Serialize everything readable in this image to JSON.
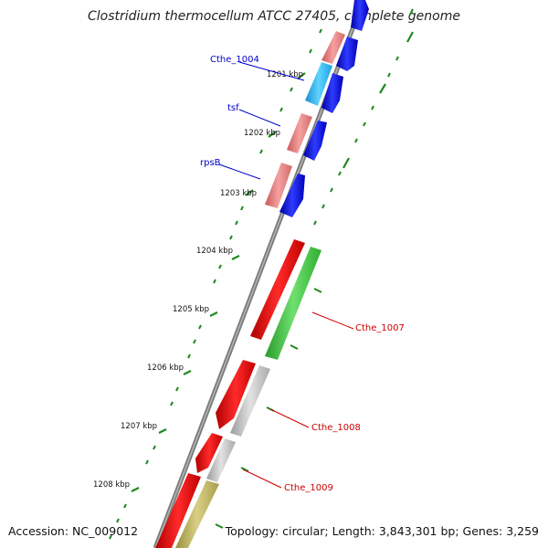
{
  "header": {
    "title": "Clostridium thermocellum ATCC 27405, complete genome"
  },
  "footer": {
    "accession": "Accession: NC_009012",
    "summary": "Topology: circular; Length: 3,843,301 bp; Genes: 3,259"
  },
  "colors": {
    "backbone": "#8a8a8a",
    "tick": "#1e8a1e",
    "forward_label": "#0000cc",
    "reverse_label": "#cc0000"
  },
  "kbp_labels": [
    "1201 kbp",
    "1202 kbp",
    "1203 kbp",
    "1204 kbp",
    "1205 kbp",
    "1206 kbp",
    "1207 kbp",
    "1208 kbp"
  ],
  "genes": [
    {
      "label": "",
      "strand": "forward",
      "color": "pink"
    },
    {
      "label": "",
      "strand": "forward",
      "color": "blue"
    },
    {
      "label": "Cthe_1004",
      "strand": "forward",
      "color": "cyan"
    },
    {
      "label": "",
      "strand": "forward",
      "color": "blue"
    },
    {
      "label": "tsf",
      "strand": "forward",
      "color": "pink"
    },
    {
      "label": "",
      "strand": "forward",
      "color": "blue"
    },
    {
      "label": "rpsB",
      "strand": "forward",
      "color": "pink"
    },
    {
      "label": "",
      "strand": "forward",
      "color": "blue"
    },
    {
      "label": "",
      "strand": "reverse",
      "color": "red"
    },
    {
      "label": "Cthe_1007",
      "strand": "reverse",
      "color": "green"
    },
    {
      "label": "",
      "strand": "reverse",
      "color": "red"
    },
    {
      "label": "Cthe_1008",
      "strand": "reverse",
      "color": "gray"
    },
    {
      "label": "",
      "strand": "reverse",
      "color": "red"
    },
    {
      "label": "",
      "strand": "reverse",
      "color": "gray"
    },
    {
      "label": "Cthe_1009",
      "strand": "reverse",
      "color": "red"
    },
    {
      "label": "",
      "strand": "reverse",
      "color": "olive"
    }
  ]
}
